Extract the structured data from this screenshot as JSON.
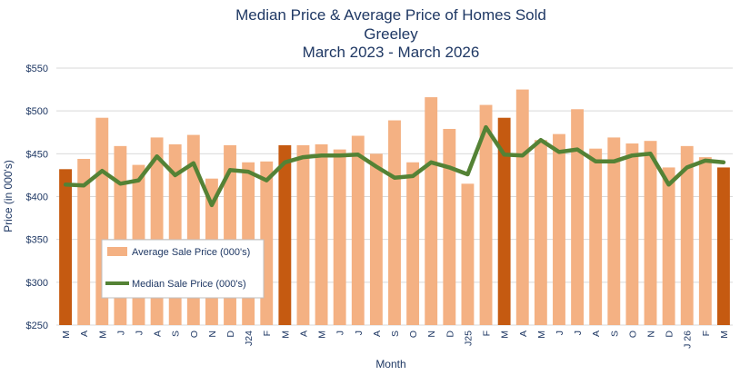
{
  "chart_data": {
    "type": "bar",
    "title": [
      "Median Price & Average Price of Homes Sold",
      "Greeley",
      "March 2023 - March 2026"
    ],
    "xlabel": "Month",
    "ylabel": "Price (in 000's)",
    "ylim": [
      250,
      550
    ],
    "yticks": [
      250,
      300,
      350,
      400,
      450,
      500,
      550
    ],
    "ytick_labels": [
      "$250",
      "$300",
      "$350",
      "$400",
      "$450",
      "$500",
      "$550"
    ],
    "grid": true,
    "legend_placement": "bottom-left",
    "categories": [
      "M",
      "A",
      "M",
      "J",
      "J",
      "A",
      "S",
      "O",
      "N",
      "D",
      "J24",
      "F",
      "M",
      "A",
      "M",
      "J",
      "J",
      "A",
      "S",
      "O",
      "N",
      "D",
      "J25",
      "F",
      "M",
      "A",
      "M",
      "J",
      "J",
      "A",
      "S",
      "O",
      "N",
      "D",
      "J 26",
      "F",
      "M"
    ],
    "highlight_indices": [
      0,
      12,
      24,
      36
    ],
    "colors": {
      "bar": "#f4b183",
      "bar_highlight": "#c55a11",
      "line": "#548235",
      "grid": "#d9d9d9",
      "text": "#1f3864"
    },
    "series": [
      {
        "name": "Average Sale Price (000's)",
        "kind": "bar",
        "values": [
          432,
          444,
          492,
          459,
          437,
          469,
          461,
          472,
          421,
          460,
          440,
          441,
          460,
          460,
          461,
          455,
          471,
          450,
          489,
          440,
          516,
          479,
          415,
          507,
          492,
          525,
          466,
          473,
          502,
          456,
          469,
          462,
          465,
          434,
          459,
          446,
          434
        ]
      },
      {
        "name": "Median Sale Price (000's)",
        "kind": "line",
        "values": [
          414,
          413,
          430,
          415,
          419,
          447,
          425,
          439,
          390,
          431,
          429,
          419,
          440,
          446,
          448,
          448,
          449,
          435,
          422,
          424,
          440,
          434,
          426,
          481,
          449,
          448,
          466,
          452,
          455,
          441,
          441,
          448,
          450,
          414,
          434,
          442,
          440
        ]
      }
    ]
  }
}
